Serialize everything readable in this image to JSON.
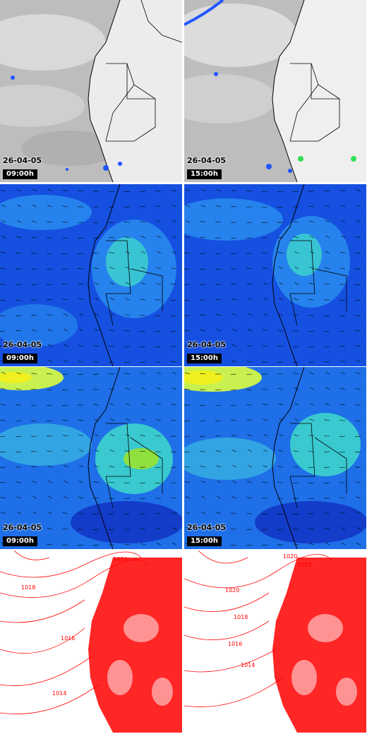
{
  "panels": [
    {
      "row": "satellite",
      "col": 0,
      "date": "26-04-05",
      "time": "09:00h"
    },
    {
      "row": "satellite",
      "col": 1,
      "date": "26-04-05",
      "time": "15:00h"
    },
    {
      "row": "wind_low",
      "col": 0,
      "date": "26-04-05",
      "time": "09:00h"
    },
    {
      "row": "wind_low",
      "col": 1,
      "date": "26-04-05",
      "time": "15:00h"
    },
    {
      "row": "wind_high",
      "col": 0,
      "date": "26-04-05",
      "time": "09:00h"
    },
    {
      "row": "wind_high",
      "col": 1,
      "date": "26-04-05",
      "time": "15:00h"
    },
    {
      "row": "pressure",
      "col": 0,
      "labels": [
        "1020",
        "1018",
        "1016",
        "1014"
      ]
    },
    {
      "row": "pressure",
      "col": 1,
      "labels": [
        "1020",
        "1018",
        "1020",
        "1018",
        "1016",
        "1014"
      ]
    }
  ],
  "colors": {
    "satellite_bg": "#c8c8c8",
    "land": "#ffffff",
    "border": "#000000",
    "wind_base": "#1550e0",
    "wind_mid": "#2a8ff0",
    "wind_high": "#40e0c8",
    "wind_peak": "#c8f050",
    "isobar": "#ff0000"
  }
}
